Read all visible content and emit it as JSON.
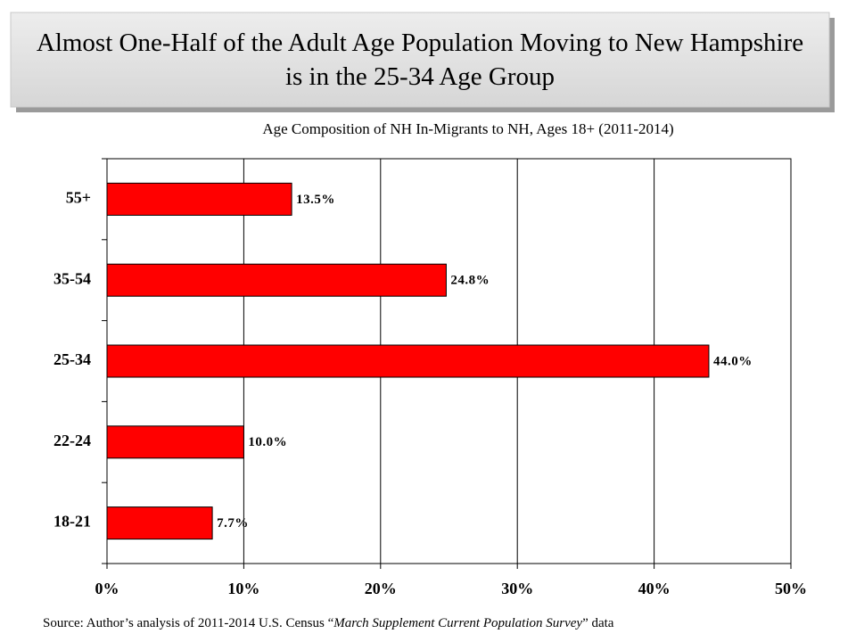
{
  "chart_data": {
    "type": "bar",
    "orientation": "horizontal",
    "title": "Almost One-Half of the Adult Age Population Moving to New Hampshire is in the 25-34 Age Group",
    "subtitle": "Age Composition of NH In-Migrants  to NH, Ages 18+ (2011-2014)",
    "categories": [
      "55+",
      "35-54",
      "25-34",
      "22-24",
      "18-21"
    ],
    "values": [
      13.5,
      24.8,
      44.0,
      10.0,
      7.7
    ],
    "value_labels": [
      "13.5%",
      "24.8%",
      "44.0%",
      "10.0%",
      "7.7%"
    ],
    "color": "#ff0000",
    "xlim": [
      0,
      50
    ],
    "xticks": [
      {
        "value": 0,
        "label": "0%"
      },
      {
        "value": 10,
        "label": "10%"
      },
      {
        "value": 20,
        "label": "20%"
      },
      {
        "value": 30,
        "label": "30%"
      },
      {
        "value": 40,
        "label": "40%"
      },
      {
        "value": 50,
        "label": "50%"
      }
    ],
    "grid": true,
    "source": {
      "prefix": "Source:  Author’s analysis  of  2011-2014   U.S. Census “",
      "italic": "March Supplement Current Population Survey",
      "suffix": "” data"
    }
  }
}
